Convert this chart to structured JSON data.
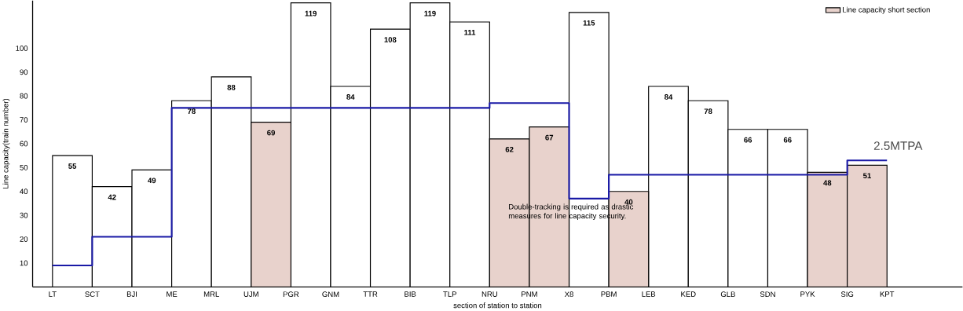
{
  "chart_data": {
    "type": "bar",
    "xlabel": "section of station to station",
    "ylabel": "Line capacity(train number)",
    "categories": [
      "LT",
      "SCT",
      "BJI",
      "ME",
      "MRL",
      "UJM",
      "PGR",
      "GNM",
      "TTR",
      "BIB",
      "TLP",
      "NRU",
      "PNM",
      "X8",
      "PBM",
      "LEB",
      "KED",
      "GLB",
      "SDN",
      "PYK",
      "SIG",
      "KPT"
    ],
    "ylim": [
      0,
      120
    ],
    "yticks": [
      10,
      20,
      30,
      40,
      50,
      60,
      70,
      80,
      90,
      100
    ],
    "series": [
      {
        "color": "#ffffff",
        "values": [
          55,
          42,
          49,
          78,
          88,
          null,
          119,
          84,
          108,
          119,
          111,
          null,
          null,
          115,
          null,
          84,
          78,
          66,
          66,
          null,
          null,
          null
        ],
        "value_labels": [
          "55",
          "42",
          "49",
          "78",
          "88",
          null,
          "119",
          "84",
          "108",
          "119",
          "111",
          null,
          null,
          "115",
          null,
          "84",
          "78",
          "66",
          "66",
          null,
          null,
          null
        ]
      },
      {
        "name": "Line capacity short section",
        "color": "#e8d2cc",
        "values": [
          null,
          null,
          null,
          null,
          null,
          69,
          null,
          null,
          null,
          null,
          null,
          62,
          67,
          null,
          40,
          null,
          null,
          null,
          null,
          48,
          51,
          null
        ],
        "value_labels": [
          null,
          null,
          null,
          null,
          null,
          "69",
          null,
          null,
          null,
          null,
          null,
          "62",
          "67",
          null,
          "40",
          null,
          null,
          null,
          null,
          "48",
          "51",
          null
        ]
      },
      {
        "type": "step",
        "name": "2.5MTPA",
        "color": "#1a1aa6",
        "values": [
          9,
          21,
          21,
          75,
          75,
          75,
          75,
          75,
          75,
          75,
          75,
          77,
          77,
          37,
          47,
          47,
          47,
          47,
          47,
          47,
          53,
          53
        ]
      }
    ],
    "legend": "top right",
    "grid": false,
    "annotations": [
      "Double-tracking is required as drastic measures for line capacity security."
    ]
  }
}
